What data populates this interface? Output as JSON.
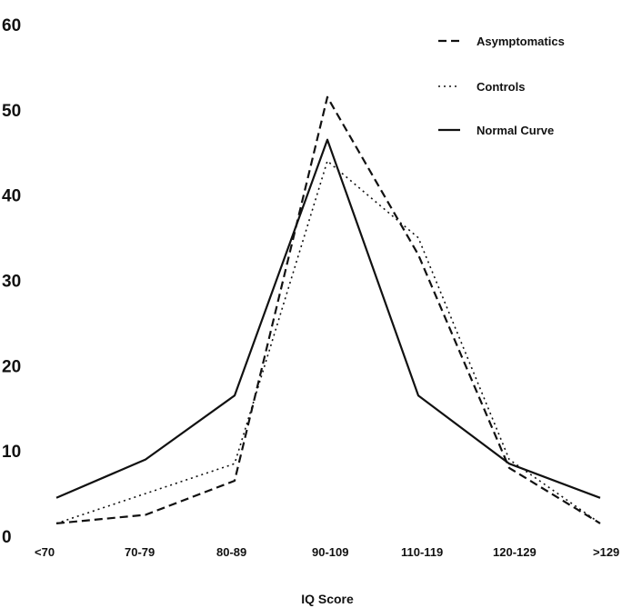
{
  "chart_data": {
    "type": "line",
    "title": "",
    "xlabel": "IQ Score",
    "ylabel": "",
    "categories": [
      "<70",
      "70-79",
      "80-89",
      "90-109",
      "110-119",
      "120-129",
      ">129"
    ],
    "ylim": [
      0,
      60
    ],
    "yticks": [
      "0",
      "10",
      "20",
      "30",
      "40",
      "50",
      "60"
    ],
    "grid": false,
    "legend_position": "top-right",
    "series": [
      {
        "name": "Asymptomatics",
        "style": "dashed",
        "color": "#111111",
        "values": [
          1.5,
          2.5,
          6.5,
          51.5,
          33,
          8,
          1.5
        ]
      },
      {
        "name": "Controls",
        "style": "dotted",
        "color": "#111111",
        "values": [
          1.5,
          5,
          8.5,
          44,
          35,
          9,
          1.5
        ]
      },
      {
        "name": "Normal Curve",
        "style": "solid",
        "color": "#111111",
        "values": [
          4.5,
          9,
          16.5,
          46.5,
          16.5,
          8.5,
          4.5
        ]
      }
    ]
  }
}
